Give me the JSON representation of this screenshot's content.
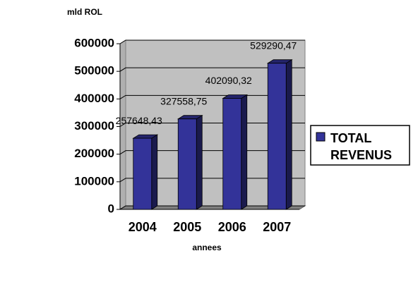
{
  "chart_data": {
    "type": "bar3d",
    "y_label": "mld ROL",
    "x_label": "annees",
    "categories": [
      "2004",
      "2005",
      "2006",
      "2007"
    ],
    "series": [
      {
        "name": "TOTAL REVENUS",
        "color": "#333399",
        "values": [
          257648.43,
          327558.75,
          402090.32,
          529290.47
        ],
        "value_labels": [
          "257648,43",
          "327558,75",
          "402090,32",
          "529290,47"
        ]
      }
    ],
    "ylim": [
      0,
      600000
    ],
    "yticks": [
      0,
      100000,
      200000,
      300000,
      400000,
      500000,
      600000
    ],
    "grid": true,
    "legend": "right"
  }
}
